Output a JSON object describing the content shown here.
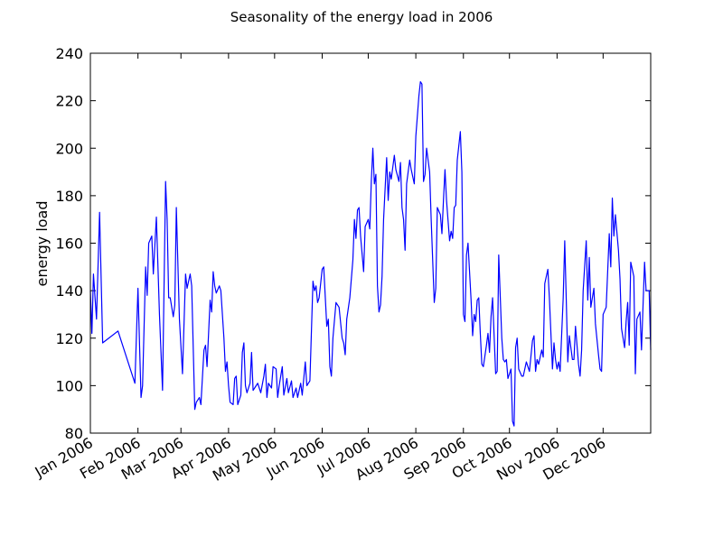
{
  "chart_data": {
    "type": "line",
    "title": "Seasonality of the energy load in 2006",
    "ylabel": "energy load",
    "color": "#0000ff",
    "x": [
      0,
      1,
      2,
      4,
      6,
      8,
      18,
      29,
      31,
      33,
      34,
      36,
      37,
      38,
      40,
      41,
      43,
      45,
      47,
      49,
      50,
      51,
      52,
      54,
      55,
      56,
      58,
      60,
      62,
      63,
      65,
      66,
      68,
      69,
      71,
      72,
      74,
      75,
      76,
      78,
      79,
      80,
      81,
      82,
      84,
      85,
      87,
      88,
      89,
      90,
      91,
      93,
      94,
      95,
      96,
      98,
      99,
      100,
      101,
      102,
      104,
      105,
      106,
      108,
      109,
      111,
      113,
      114,
      115,
      116,
      118,
      119,
      121,
      122,
      123,
      125,
      126,
      128,
      129,
      131,
      132,
      134,
      135,
      137,
      138,
      140,
      141,
      143,
      145,
      146,
      147,
      148,
      149,
      151,
      152,
      154,
      155,
      156,
      157,
      158,
      160,
      162,
      164,
      165,
      166,
      167,
      169,
      171,
      172,
      173,
      174,
      175,
      176,
      178,
      179,
      181,
      182,
      183,
      184,
      185,
      186,
      187,
      188,
      189,
      190,
      191,
      193,
      194,
      195,
      196,
      198,
      199,
      201,
      202,
      203,
      204,
      205,
      206,
      208,
      209,
      211,
      212,
      214,
      215,
      216,
      217,
      218,
      219,
      221,
      222,
      224,
      225,
      226,
      228,
      229,
      230,
      231,
      232,
      234,
      235,
      236,
      237,
      238,
      239,
      241,
      242,
      243,
      244,
      245,
      246,
      248,
      249,
      250,
      251,
      252,
      253,
      254,
      255,
      256,
      258,
      259,
      260,
      261,
      262,
      264,
      265,
      266,
      268,
      269,
      270,
      271,
      272,
      274,
      275,
      276,
      277,
      278,
      279,
      281,
      282,
      284,
      286,
      288,
      289,
      290,
      291,
      292,
      294,
      295,
      296,
      298,
      299,
      301,
      302,
      303,
      304,
      305,
      306,
      308,
      309,
      310,
      311,
      312,
      314,
      315,
      316,
      318,
      319,
      320,
      321,
      323,
      324,
      325,
      326,
      328,
      329,
      331,
      332,
      333,
      334,
      336,
      338,
      339,
      340,
      341,
      342,
      344,
      345,
      346,
      348,
      349,
      350,
      351,
      352,
      354,
      355,
      356,
      358,
      359,
      361,
      362,
      364,
      365
    ],
    "values": [
      140,
      122,
      147,
      128,
      173,
      118,
      123,
      101,
      141,
      95,
      100,
      150,
      138,
      160,
      163,
      147,
      171,
      130,
      98,
      186,
      170,
      137,
      137,
      129,
      134,
      175,
      128,
      105,
      147,
      141,
      147,
      142,
      90,
      93,
      95,
      92,
      115,
      117,
      108,
      136,
      131,
      148,
      142,
      139,
      142,
      140,
      120,
      106,
      110,
      100,
      93,
      92,
      103,
      104,
      92,
      96,
      114,
      118,
      100,
      97,
      101,
      114,
      98,
      100,
      101,
      97,
      104,
      109,
      95,
      101,
      99,
      108,
      107,
      95,
      100,
      108,
      96,
      103,
      97,
      102,
      95,
      99,
      95,
      101,
      96,
      110,
      100,
      102,
      144,
      140,
      142,
      135,
      137,
      149,
      150,
      125,
      128,
      108,
      104,
      120,
      135,
      133,
      120,
      118,
      113,
      128,
      137,
      153,
      170,
      162,
      174,
      175,
      163,
      148,
      167,
      170,
      166,
      186,
      200,
      185,
      189,
      142,
      131,
      134,
      146,
      170,
      196,
      178,
      190,
      187,
      197,
      191,
      186,
      194,
      175,
      170,
      157,
      185,
      195,
      191,
      185,
      205,
      222,
      228,
      227,
      186,
      189,
      200,
      190,
      170,
      135,
      141,
      175,
      172,
      164,
      178,
      191,
      178,
      161,
      165,
      162,
      175,
      176,
      195,
      207,
      190,
      130,
      127,
      155,
      160,
      136,
      121,
      130,
      127,
      136,
      137,
      122,
      109,
      108,
      117,
      122,
      114,
      129,
      137,
      105,
      106,
      155,
      120,
      111,
      110,
      111,
      103,
      107,
      85,
      83,
      116,
      120,
      107,
      104,
      104,
      110,
      106,
      119,
      121,
      106,
      111,
      109,
      115,
      112,
      143,
      149,
      137,
      107,
      118,
      111,
      107,
      110,
      106,
      137,
      161,
      136,
      110,
      121,
      111,
      111,
      125,
      109,
      104,
      115,
      140,
      161,
      136,
      154,
      133,
      141,
      126,
      113,
      107,
      106,
      130,
      133,
      164,
      150,
      179,
      163,
      172,
      157,
      145,
      124,
      116,
      127,
      135,
      117,
      152,
      146,
      105,
      128,
      131,
      115,
      152,
      140,
      140,
      115
    ],
    "xlim": [
      0,
      365
    ],
    "xticks": [
      {
        "value": 0,
        "label": "Jan 2006"
      },
      {
        "value": 31,
        "label": "Feb 2006"
      },
      {
        "value": 59,
        "label": "Mar 2006"
      },
      {
        "value": 90,
        "label": "Apr 2006"
      },
      {
        "value": 120,
        "label": "May 2006"
      },
      {
        "value": 151,
        "label": "Jun 2006"
      },
      {
        "value": 181,
        "label": "Jul 2006"
      },
      {
        "value": 212,
        "label": "Aug 2006"
      },
      {
        "value": 243,
        "label": "Sep 2006"
      },
      {
        "value": 273,
        "label": "Oct 2006"
      },
      {
        "value": 304,
        "label": "Nov 2006"
      },
      {
        "value": 334,
        "label": "Dec 2006"
      }
    ],
    "ylim": [
      80,
      240
    ],
    "yticks": [
      80,
      100,
      120,
      140,
      160,
      180,
      200,
      220,
      240
    ],
    "grid": false
  }
}
